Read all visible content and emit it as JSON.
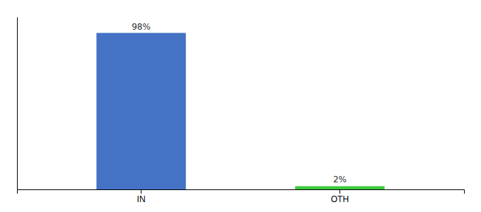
{
  "chart_data": {
    "type": "bar",
    "categories": [
      "IN",
      "OTH"
    ],
    "values": [
      98,
      2
    ],
    "value_labels": [
      "98%",
      "2%"
    ],
    "colors": [
      "#4472C4",
      "#3DC93D"
    ],
    "ylim": [
      0,
      108
    ],
    "data_labels": true,
    "grid": false,
    "tick_labels": "x"
  }
}
